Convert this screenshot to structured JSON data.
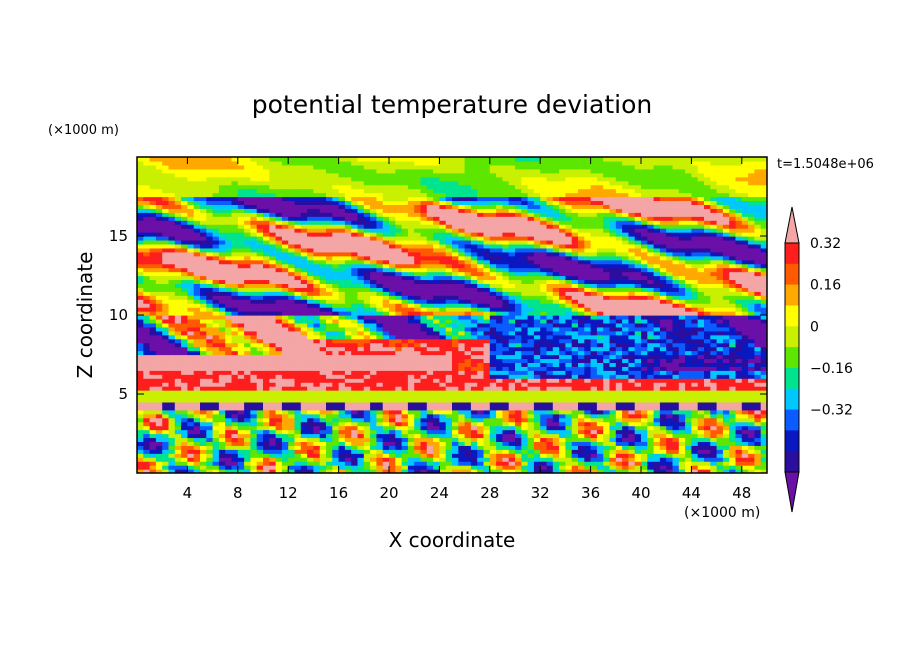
{
  "chart_data": {
    "type": "heatmap",
    "title": "potential temperature deviation",
    "xlabel": "X coordinate",
    "ylabel": "Z coordinate",
    "x_unit": "(×1000 m)",
    "y_unit": "(×1000 m)",
    "time_label": "t=1.5048e+06",
    "xlim": [
      0,
      50
    ],
    "ylim": [
      0,
      20
    ],
    "x_ticks": [
      4,
      8,
      12,
      16,
      20,
      24,
      28,
      32,
      36,
      40,
      44,
      48
    ],
    "y_ticks": [
      5,
      10,
      15
    ],
    "colorbar": {
      "levels": [
        -0.48,
        -0.4,
        -0.32,
        -0.24,
        -0.16,
        -0.08,
        0,
        0.08,
        0.16,
        0.24,
        0.32,
        0.4
      ],
      "tick_labels": [
        "-0.32",
        "-0.16",
        "0",
        "0.16",
        "0.32"
      ],
      "tick_values": [
        -0.32,
        -0.16,
        0,
        0.16,
        0.32
      ],
      "colors": [
        "#6a0fa8",
        "#2b0e9e",
        "#0a18c2",
        "#0a5cff",
        "#00c8ff",
        "#00e38f",
        "#5ce600",
        "#c8f000",
        "#ffff00",
        "#ffa800",
        "#ff5a00",
        "#ff1e1e",
        "#f4a5a5"
      ]
    }
  }
}
